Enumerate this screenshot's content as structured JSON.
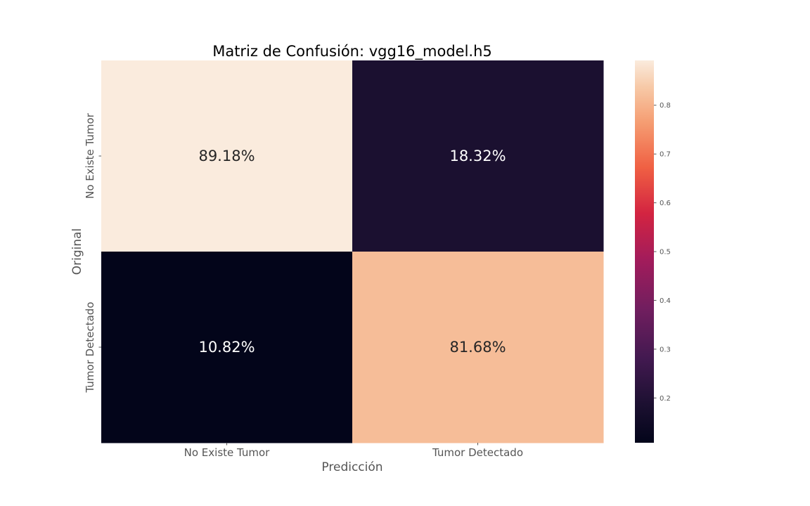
{
  "chart_data": {
    "type": "heatmap",
    "title": "Matriz de Confusión: vgg16_model.h5",
    "xlabel": "Predicción",
    "ylabel": "Original",
    "x_categories": [
      "No Existe Tumor",
      "Tumor Detectado"
    ],
    "y_categories": [
      "No Existe Tumor",
      "Tumor Detectado"
    ],
    "values": [
      [
        0.8918,
        0.1832
      ],
      [
        0.1082,
        0.8168
      ]
    ],
    "cell_labels": [
      [
        "89.18%",
        "18.32%"
      ],
      [
        "10.82%",
        "81.68%"
      ]
    ],
    "colorbar": {
      "colormap": "rocket",
      "min": 0.1082,
      "max": 0.8918,
      "ticks": [
        0.2,
        0.3,
        0.4,
        0.5,
        0.6,
        0.7,
        0.8
      ],
      "tick_labels": [
        "0.2",
        "0.3",
        "0.4",
        "0.5",
        "0.6",
        "0.7",
        "0.8"
      ]
    }
  }
}
